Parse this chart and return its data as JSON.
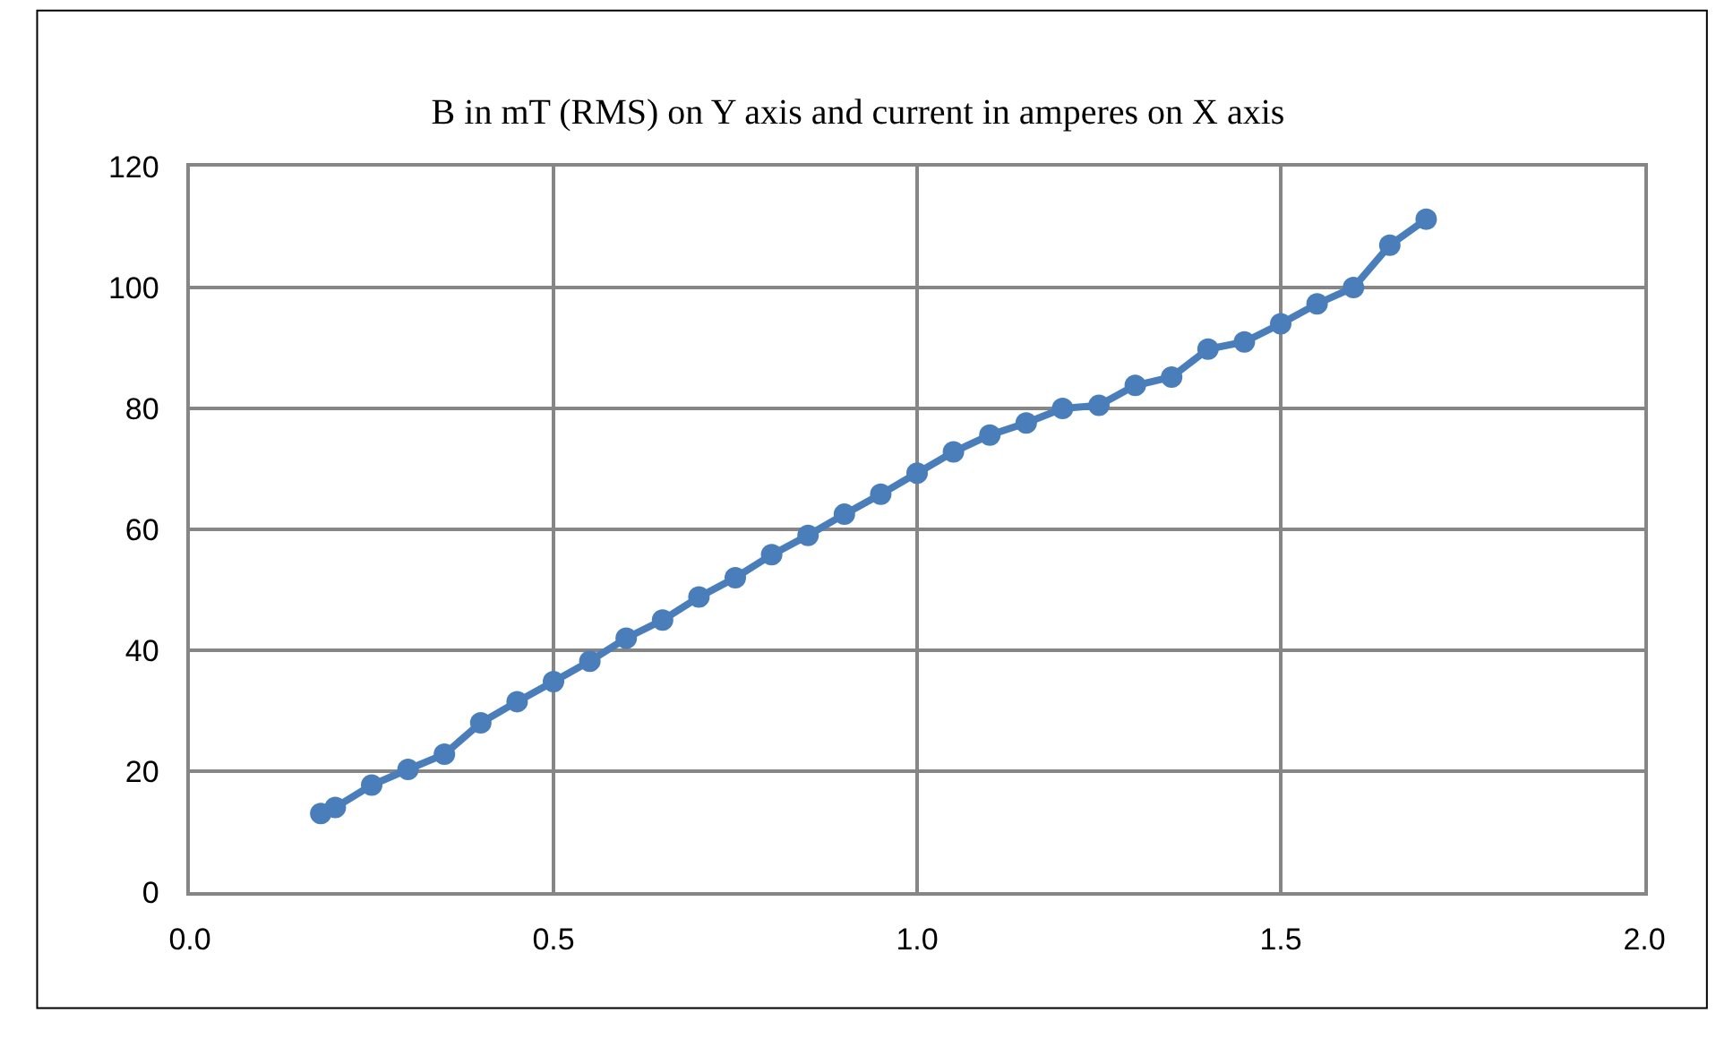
{
  "chart_data": {
    "type": "line",
    "title": "B in mT (RMS) on Y axis and current in amperes on X axis",
    "x": [
      0.18,
      0.2,
      0.25,
      0.3,
      0.35,
      0.4,
      0.45,
      0.5,
      0.55,
      0.6,
      0.65,
      0.7,
      0.75,
      0.8,
      0.85,
      0.9,
      0.95,
      1.0,
      1.05,
      1.1,
      1.15,
      1.2,
      1.25,
      1.3,
      1.35,
      1.4,
      1.45,
      1.5,
      1.55,
      1.6,
      1.65,
      1.7
    ],
    "series": [
      {
        "color": "#4a7ebb",
        "values": [
          13,
          14,
          17.7,
          20.3,
          22.8,
          28,
          31.5,
          34.8,
          38.2,
          42,
          45,
          48.8,
          52,
          55.8,
          59,
          62.5,
          65.8,
          69.3,
          72.8,
          75.6,
          77.6,
          80,
          80.5,
          83.8,
          85.2,
          89.8,
          91,
          94,
          97.3,
          100,
          107,
          111.3
        ]
      }
    ],
    "xlim": [
      0,
      2
    ],
    "xticks": [
      {
        "value": 0,
        "label": "0.0"
      },
      {
        "value": 0.5,
        "label": "0.5"
      },
      {
        "value": 1,
        "label": "1.0"
      },
      {
        "value": 1.5,
        "label": "1.5"
      },
      {
        "value": 2,
        "label": "2.0"
      }
    ],
    "ylim": [
      0,
      120
    ],
    "yticks": [
      0,
      20,
      40,
      60,
      80,
      100,
      120
    ],
    "grid": true,
    "marker": "circle",
    "line_style": "solid"
  }
}
